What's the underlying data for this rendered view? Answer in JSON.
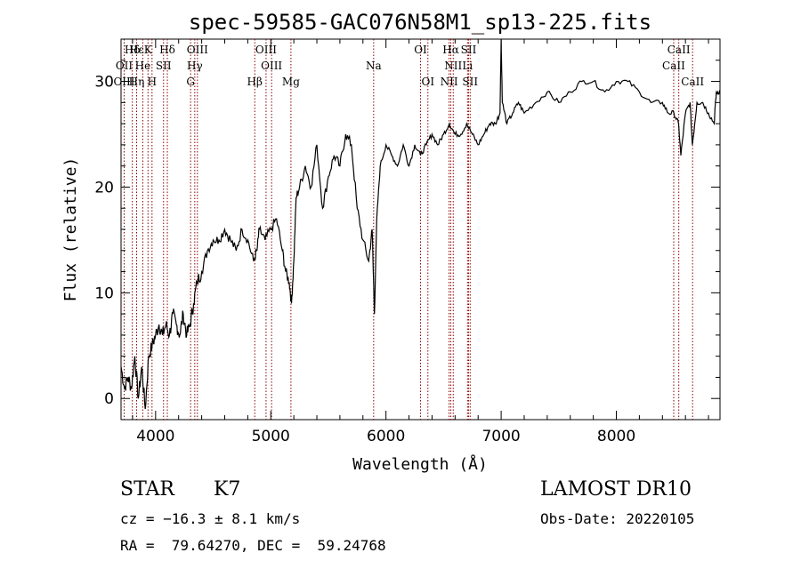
{
  "chart_data": {
    "type": "line",
    "title": "spec-59585-GAC076N58M1_sp13-225.fits",
    "xlabel": "Wavelength (Å)",
    "ylabel": "Flux (relative)",
    "xlim": [
      3700,
      8900
    ],
    "ylim": [
      -2,
      34
    ],
    "xticks": [
      4000,
      5000,
      6000,
      7000,
      8000
    ],
    "yticks": [
      0,
      10,
      20,
      30
    ],
    "grid": false,
    "colors": {
      "spectrum": "#000000",
      "lines": "#8b0000"
    },
    "series": [
      {
        "x": [
          3700,
          3730,
          3760,
          3790,
          3820,
          3850,
          3880,
          3910,
          3940,
          3970,
          4000,
          4030,
          4060,
          4090,
          4120,
          4150,
          4180,
          4210,
          4240,
          4270,
          4300,
          4330,
          4360,
          4400,
          4450,
          4500,
          4550,
          4600,
          4650,
          4700,
          4750,
          4800,
          4850,
          4880,
          4900,
          4950,
          5000,
          5050,
          5100,
          5130,
          5160,
          5180,
          5200,
          5220,
          5250,
          5300,
          5350,
          5400,
          5450,
          5500,
          5550,
          5600,
          5650,
          5700,
          5750,
          5800,
          5850,
          5880,
          5900,
          5920,
          5950,
          6000,
          6050,
          6100,
          6150,
          6200,
          6250,
          6300,
          6350,
          6400,
          6450,
          6500,
          6550,
          6600,
          6650,
          6700,
          6750,
          6800,
          6850,
          6900,
          6950,
          6990,
          7000,
          7010,
          7050,
          7100,
          7150,
          7200,
          7300,
          7400,
          7500,
          7600,
          7700,
          7800,
          7900,
          8000,
          8100,
          8200,
          8300,
          8400,
          8450,
          8500,
          8540,
          8560,
          8600,
          8640,
          8660,
          8700,
          8750,
          8800,
          8850,
          8860,
          8870,
          8900
        ],
        "y": [
          3,
          1,
          2,
          1,
          4,
          0,
          3,
          -1,
          4,
          5,
          6,
          7,
          6,
          7,
          6,
          8,
          7,
          6,
          8,
          6,
          7,
          9,
          11,
          12,
          14,
          15,
          15,
          16,
          15,
          14,
          16,
          15,
          13,
          14,
          16,
          15,
          16,
          17,
          14,
          12,
          11,
          9,
          13,
          19,
          20,
          22,
          20,
          24,
          18,
          21,
          23,
          22,
          25,
          24,
          18,
          15,
          13,
          16,
          8,
          17,
          22,
          24,
          23,
          22,
          24,
          22,
          24,
          23,
          24,
          25,
          24,
          25,
          26,
          25,
          25,
          26,
          25,
          24,
          25,
          26,
          26,
          27,
          34,
          28,
          26,
          27,
          28,
          27,
          28,
          29,
          28,
          29,
          30,
          30,
          29,
          30,
          30,
          29,
          28,
          28,
          27,
          27,
          26,
          23,
          27,
          28,
          24,
          28,
          28,
          27,
          26,
          28,
          29,
          29
        ]
      }
    ],
    "emission_lines": [
      {
        "label": "Hδ",
        "x": 3798,
        "row": 0
      },
      {
        "label": "Hε",
        "x": 3835,
        "row": 0
      },
      {
        "label": "K",
        "x": 3934,
        "row": 0
      },
      {
        "label": "Hδ",
        "x": 4102,
        "row": 0
      },
      {
        "label": "OIII",
        "x": 4363,
        "row": 0
      },
      {
        "label": "OIII",
        "x": 4959,
        "row": 0
      },
      {
        "label": "OI",
        "x": 6300,
        "row": 0
      },
      {
        "label": "Hα",
        "x": 6563,
        "row": 0
      },
      {
        "label": "SII",
        "x": 6717,
        "row": 0
      },
      {
        "label": "CaII",
        "x": 8542,
        "row": 0
      },
      {
        "label": "OII",
        "x": 3727,
        "row": 1
      },
      {
        "label": "He",
        "x": 3889,
        "row": 1
      },
      {
        "label": "SII",
        "x": 4069,
        "row": 1
      },
      {
        "label": "Hγ",
        "x": 4340,
        "row": 1
      },
      {
        "label": "OIII",
        "x": 5007,
        "row": 1
      },
      {
        "label": "Na",
        "x": 5893,
        "row": 1
      },
      {
        "label": "NII",
        "x": 6584,
        "row": 1
      },
      {
        "label": "Li",
        "x": 6708,
        "row": 1
      },
      {
        "label": "CaII",
        "x": 8498,
        "row": 1
      },
      {
        "label": "OIII",
        "x": 3727,
        "row": 2
      },
      {
        "label": "Hη",
        "x": 3835,
        "row": 2
      },
      {
        "label": "H",
        "x": 3969,
        "row": 2
      },
      {
        "label": "G",
        "x": 4304,
        "row": 2
      },
      {
        "label": "Hβ",
        "x": 4861,
        "row": 2
      },
      {
        "label": "Mg",
        "x": 5175,
        "row": 2
      },
      {
        "label": "OI",
        "x": 6364,
        "row": 2
      },
      {
        "label": "NII",
        "x": 6548,
        "row": 2
      },
      {
        "label": "SII",
        "x": 6731,
        "row": 2
      },
      {
        "label": "CaII",
        "x": 8662,
        "row": 2
      }
    ]
  },
  "info": {
    "class": "STAR",
    "subclass": "K7",
    "survey": "LAMOST DR10",
    "cz": "cz = −16.3 ± 8.1 km/s",
    "obs_date": "Obs-Date: 20220105",
    "coords": "RA =  79.64270, DEC =  59.24768"
  }
}
